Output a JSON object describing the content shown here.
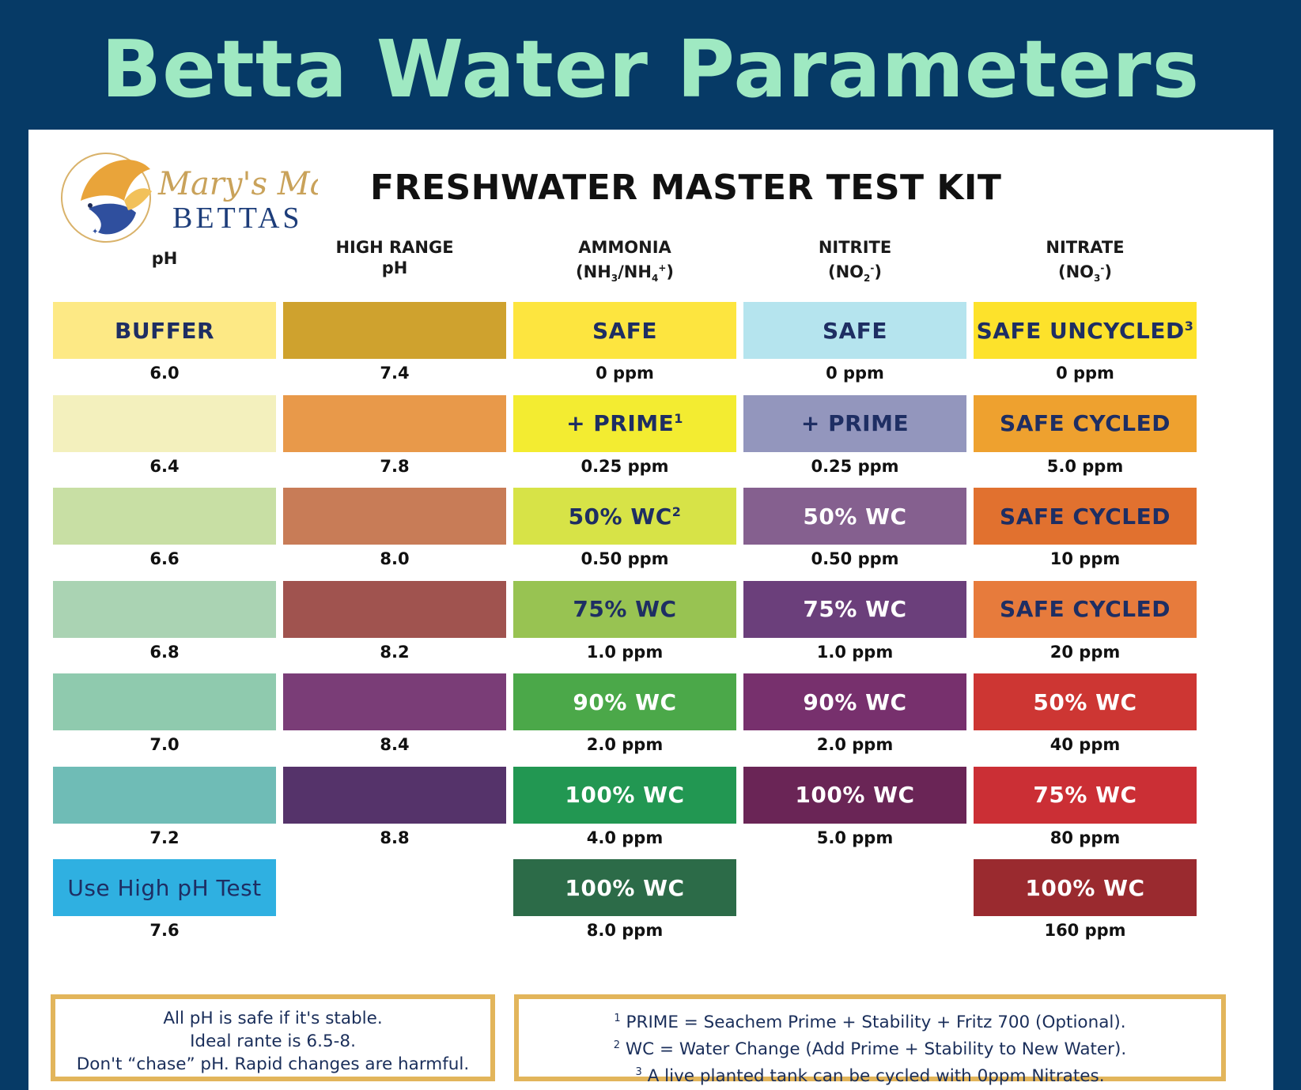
{
  "banner": {
    "title": "Betta Water Parameters"
  },
  "logo": {
    "script_text": "Mary's Magic",
    "caps_text": "BETTAS",
    "description_icon": "betta-fish-logo-icon"
  },
  "kit_title": "FRESHWATER MASTER TEST KIT",
  "columns": [
    {
      "head_lines": [
        "pH"
      ]
    },
    {
      "head_lines": [
        "HIGH RANGE",
        "pH"
      ]
    },
    {
      "head_lines": [
        "AMMONIA"
      ],
      "formula_html": "(NH<sub>3</sub>/NH<sub>4</sub><sup>+</sup>)",
      "formula_text": "(NH3/NH4+)"
    },
    {
      "head_lines": [
        "NITRITE"
      ],
      "formula_html": "(NO<sub>2</sub><sup>-</sup>)",
      "formula_text": "(NO2-)"
    },
    {
      "head_lines": [
        "NITRATE"
      ],
      "formula_html": "(NO<sub>3</sub><sup>-</sup>)",
      "formula_text": "(NO3-)"
    }
  ],
  "rows": {
    "ph": [
      {
        "label": "BUFFER",
        "color": "#fde985",
        "text_color": "#1e2e63",
        "value": "6.0"
      },
      {
        "label": "",
        "color": "#f3f0bd",
        "text_color": "#1e2e63",
        "value": "6.4"
      },
      {
        "label": "",
        "color": "#c8dfa4",
        "text_color": "#1e2e63",
        "value": "6.6"
      },
      {
        "label": "",
        "color": "#aad3b3",
        "text_color": "#1e2e63",
        "value": "6.8"
      },
      {
        "label": "",
        "color": "#8fcaae",
        "text_color": "#1e2e63",
        "value": "7.0"
      },
      {
        "label": "",
        "color": "#6fbcb6",
        "text_color": "#1e2e63",
        "value": "7.2"
      },
      {
        "label": "Use High pH Test",
        "color": "#2fb0e1",
        "text_color": "#1e2e63",
        "value": "7.6",
        "plain": true
      }
    ],
    "high_ph": [
      {
        "label": "",
        "color": "#cfa22e",
        "value": "7.4"
      },
      {
        "label": "",
        "color": "#e8994a",
        "value": "7.8"
      },
      {
        "label": "",
        "color": "#c87c57",
        "value": "8.0"
      },
      {
        "label": "",
        "color": "#a0534f",
        "value": "8.2"
      },
      {
        "label": "",
        "color": "#7a3d77",
        "value": "8.4"
      },
      {
        "label": "",
        "color": "#55336a",
        "value": "8.8"
      }
    ],
    "ammonia": [
      {
        "label": "SAFE",
        "sup": "",
        "color": "#fde53f",
        "text_color": "#1e2e63",
        "value": "0 ppm"
      },
      {
        "label": "+ PRIME",
        "sup": "1",
        "color": "#f3ec31",
        "text_color": "#1e2e63",
        "value": "0.25 ppm"
      },
      {
        "label": "50% WC",
        "sup": "2",
        "color": "#d7e347",
        "text_color": "#1e2e63",
        "value": "0.50 ppm"
      },
      {
        "label": "75% WC",
        "sup": "",
        "color": "#98c352",
        "text_color": "#1e2e63",
        "value": "1.0 ppm"
      },
      {
        "label": "90% WC",
        "sup": "",
        "color": "#4ba849",
        "text_color": "#ffffff",
        "value": "2.0 ppm"
      },
      {
        "label": "100% WC",
        "sup": "",
        "color": "#229752",
        "text_color": "#ffffff",
        "value": "4.0 ppm"
      },
      {
        "label": "100% WC",
        "sup": "",
        "color": "#2c6b48",
        "text_color": "#ffffff",
        "value": "8.0 ppm"
      }
    ],
    "nitrite": [
      {
        "label": "SAFE",
        "color": "#b5e4ee",
        "text_color": "#1e2e63",
        "value": "0 ppm"
      },
      {
        "label": "+ PRIME",
        "color": "#9396bd",
        "text_color": "#1e2e63",
        "value": "0.25 ppm"
      },
      {
        "label": "50% WC",
        "color": "#85608f",
        "text_color": "#ffffff",
        "value": "0.50 ppm"
      },
      {
        "label": "75% WC",
        "color": "#6b3f7b",
        "text_color": "#ffffff",
        "value": "1.0 ppm"
      },
      {
        "label": "90% WC",
        "color": "#77306d",
        "text_color": "#ffffff",
        "value": "2.0 ppm"
      },
      {
        "label": "100% WC",
        "color": "#6a2556",
        "text_color": "#ffffff",
        "value": "5.0 ppm"
      }
    ],
    "nitrate": [
      {
        "label": "SAFE UNCYCLED",
        "sup": "3",
        "color": "#fde22b",
        "text_color": "#1e2e63",
        "value": "0 ppm"
      },
      {
        "label": "SAFE CYCLED",
        "sup": "",
        "color": "#eea12f",
        "text_color": "#1e2e63",
        "value": "5.0 ppm"
      },
      {
        "label": "SAFE CYCLED",
        "sup": "",
        "color": "#e1712f",
        "text_color": "#1e2e63",
        "value": "10 ppm"
      },
      {
        "label": "SAFE CYCLED",
        "sup": "",
        "color": "#e77b3c",
        "text_color": "#1e2e63",
        "value": "20 ppm"
      },
      {
        "label": "50% WC",
        "sup": "",
        "color": "#cd3633",
        "text_color": "#ffffff",
        "value": "40 ppm"
      },
      {
        "label": "75% WC",
        "sup": "",
        "color": "#cb2f35",
        "text_color": "#ffffff",
        "value": "80 ppm"
      },
      {
        "label": "100% WC",
        "sup": "",
        "color": "#9a2a2f",
        "text_color": "#ffffff",
        "value": "160 ppm"
      }
    ]
  },
  "notes": {
    "ph_box": [
      "All pH is safe if it's stable.",
      "Ideal rante is 6.5-8.",
      "Don't “chase” pH. Rapid changes are harmful."
    ],
    "footnotes": [
      {
        "num": "1",
        "text": "PRIME = Seachem Prime + Stability + Fritz 700 (Optional)."
      },
      {
        "num": "2",
        "text": "WC = Water Change (Add Prime + Stability to New Water)."
      },
      {
        "num": "3",
        "text": "A live planted tank can be cycled with 0ppm Nitrates."
      }
    ]
  },
  "colors": {
    "background": "#063a66",
    "banner_text": "#9fe9c2",
    "card": "#ffffff",
    "note_border": "#e2b55b"
  }
}
